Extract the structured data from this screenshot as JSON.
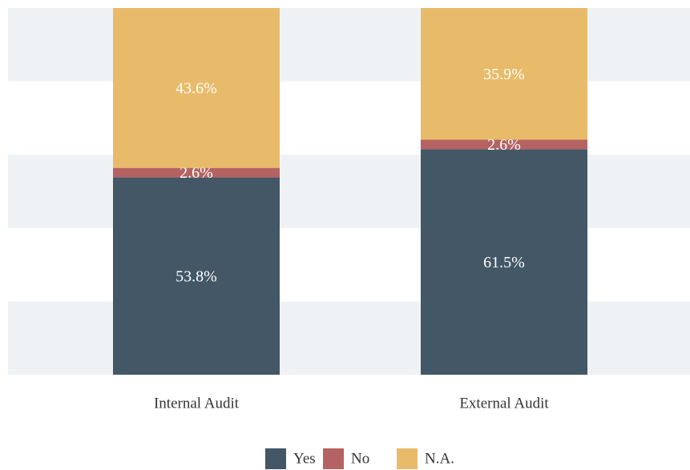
{
  "chart_data": {
    "type": "stacked_bar",
    "categories": [
      "Internal Audit",
      "External Audit"
    ],
    "series": [
      {
        "name": "Yes",
        "color": "#435766",
        "values": [
          53.8,
          61.5
        ],
        "value_labels": [
          "53.8%",
          "61.5%"
        ]
      },
      {
        "name": "No",
        "color": "#b56262",
        "values": [
          2.6,
          2.6
        ],
        "value_labels": [
          "2.6%",
          "2.6%"
        ]
      },
      {
        "name": "N.A.",
        "color": "#e8bb6a",
        "values": [
          43.6,
          35.9
        ],
        "value_labels": [
          "43.6%",
          "35.9%"
        ]
      }
    ],
    "ylim": [
      0,
      100
    ],
    "yticks": [
      0,
      20,
      40,
      60,
      80,
      100
    ],
    "band_color": "#eff2f5",
    "legend": "bottom"
  }
}
